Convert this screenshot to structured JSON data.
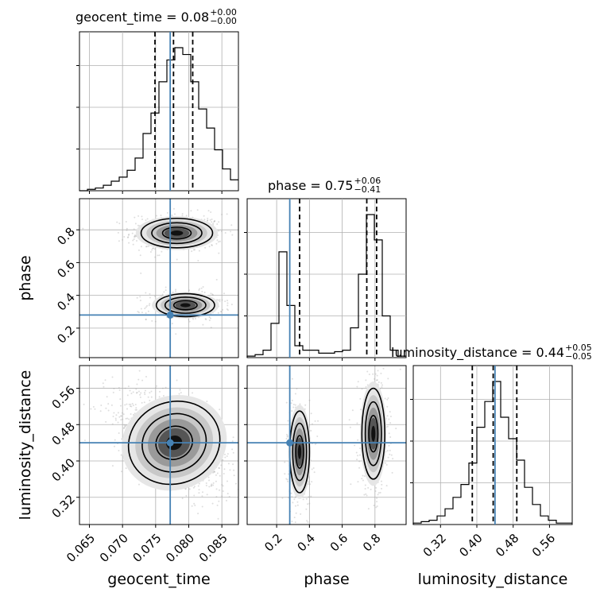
{
  "titles": {
    "geocent": {
      "label": "geocent_time = 0.08",
      "plus": "+0.00",
      "minus": "−0.00"
    },
    "phase": {
      "label": "phase = 0.75",
      "plus": "+0.06",
      "minus": "−0.41"
    },
    "lumdist": {
      "label": "luminosity_distance = 0.44",
      "plus": "+0.05",
      "minus": "−0.05"
    }
  },
  "chart_data": {
    "type": "corner",
    "parameters": [
      "geocent_time",
      "phase",
      "luminosity_distance"
    ],
    "axis_labels": {
      "phase_y": "phase",
      "lumdist_y": "luminosity_distance",
      "geocent_x": "geocent_time",
      "phase_x": "phase",
      "lumdist_x": "luminosity_distance"
    },
    "ranges": {
      "geocent_time": [
        0.0635,
        0.0875
      ],
      "phase": [
        0.02,
        0.99
      ],
      "luminosity_distance": [
        0.26,
        0.61
      ]
    },
    "ticks": {
      "geocent_time": [
        "0.065",
        "0.070",
        "0.075",
        "0.080",
        "0.085"
      ],
      "phase_x": [
        "0.2",
        "0.4",
        "0.6",
        "0.8"
      ],
      "phase_y": [
        "0.2",
        "0.4",
        "0.6",
        "0.8"
      ],
      "luminosity_distance": [
        "0.32",
        "0.40",
        "0.48",
        "0.56"
      ]
    },
    "truths": {
      "geocent_time": 0.0772,
      "phase": 0.28,
      "luminosity_distance": 0.44
    },
    "quantiles": {
      "geocent_time": [
        0.0749,
        0.0777,
        0.0806
      ],
      "phase": [
        0.34,
        0.75,
        0.81
      ],
      "luminosity_distance": [
        0.39,
        0.436,
        0.488
      ]
    },
    "histograms": {
      "geocent_time": {
        "edges_start": 0.0635,
        "bin_width": 0.0012,
        "counts": [
          0,
          1,
          2,
          4,
          7,
          10,
          15,
          24,
          42,
          57,
          80,
          96,
          105,
          100,
          80,
          60,
          46,
          30,
          16,
          8
        ]
      },
      "phase": {
        "edges_start": 0.02,
        "bin_width": 0.0485,
        "counts": [
          1,
          2,
          5,
          23,
          71,
          35,
          8,
          5,
          5,
          3,
          3,
          4,
          5,
          20,
          56,
          96,
          79,
          28,
          5,
          1
        ]
      },
      "luminosity_distance": {
        "edges_start": 0.26,
        "bin_width": 0.0175,
        "counts": [
          1,
          2,
          3,
          6,
          11,
          19,
          28,
          43,
          68,
          86,
          100,
          75,
          60,
          45,
          26,
          14,
          6,
          3,
          1,
          1
        ]
      }
    },
    "clusters_2d": {
      "geocent_phase": [
        {
          "x": 0.0782,
          "y": 0.78,
          "sx": 0.0027,
          "sy": 0.045,
          "weight": 0.6
        },
        {
          "x": 0.0795,
          "y": 0.34,
          "sx": 0.0022,
          "sy": 0.035,
          "weight": 0.4
        }
      ],
      "geocent_lumdist": [
        {
          "x": 0.0778,
          "y": 0.44,
          "sx": 0.0035,
          "sy": 0.045,
          "rho": -0.55,
          "weight": 1
        }
      ],
      "phase_lumdist": [
        {
          "x": 0.34,
          "y": 0.42,
          "sx": 0.03,
          "sy": 0.045,
          "weight": 0.45
        },
        {
          "x": 0.79,
          "y": 0.46,
          "sx": 0.035,
          "sy": 0.05,
          "weight": 0.55
        }
      ]
    },
    "colors": {
      "truth": "#4682b4",
      "line": "#000000",
      "grid": "#b0b0b0",
      "scatter": "#a0a0a0"
    }
  }
}
